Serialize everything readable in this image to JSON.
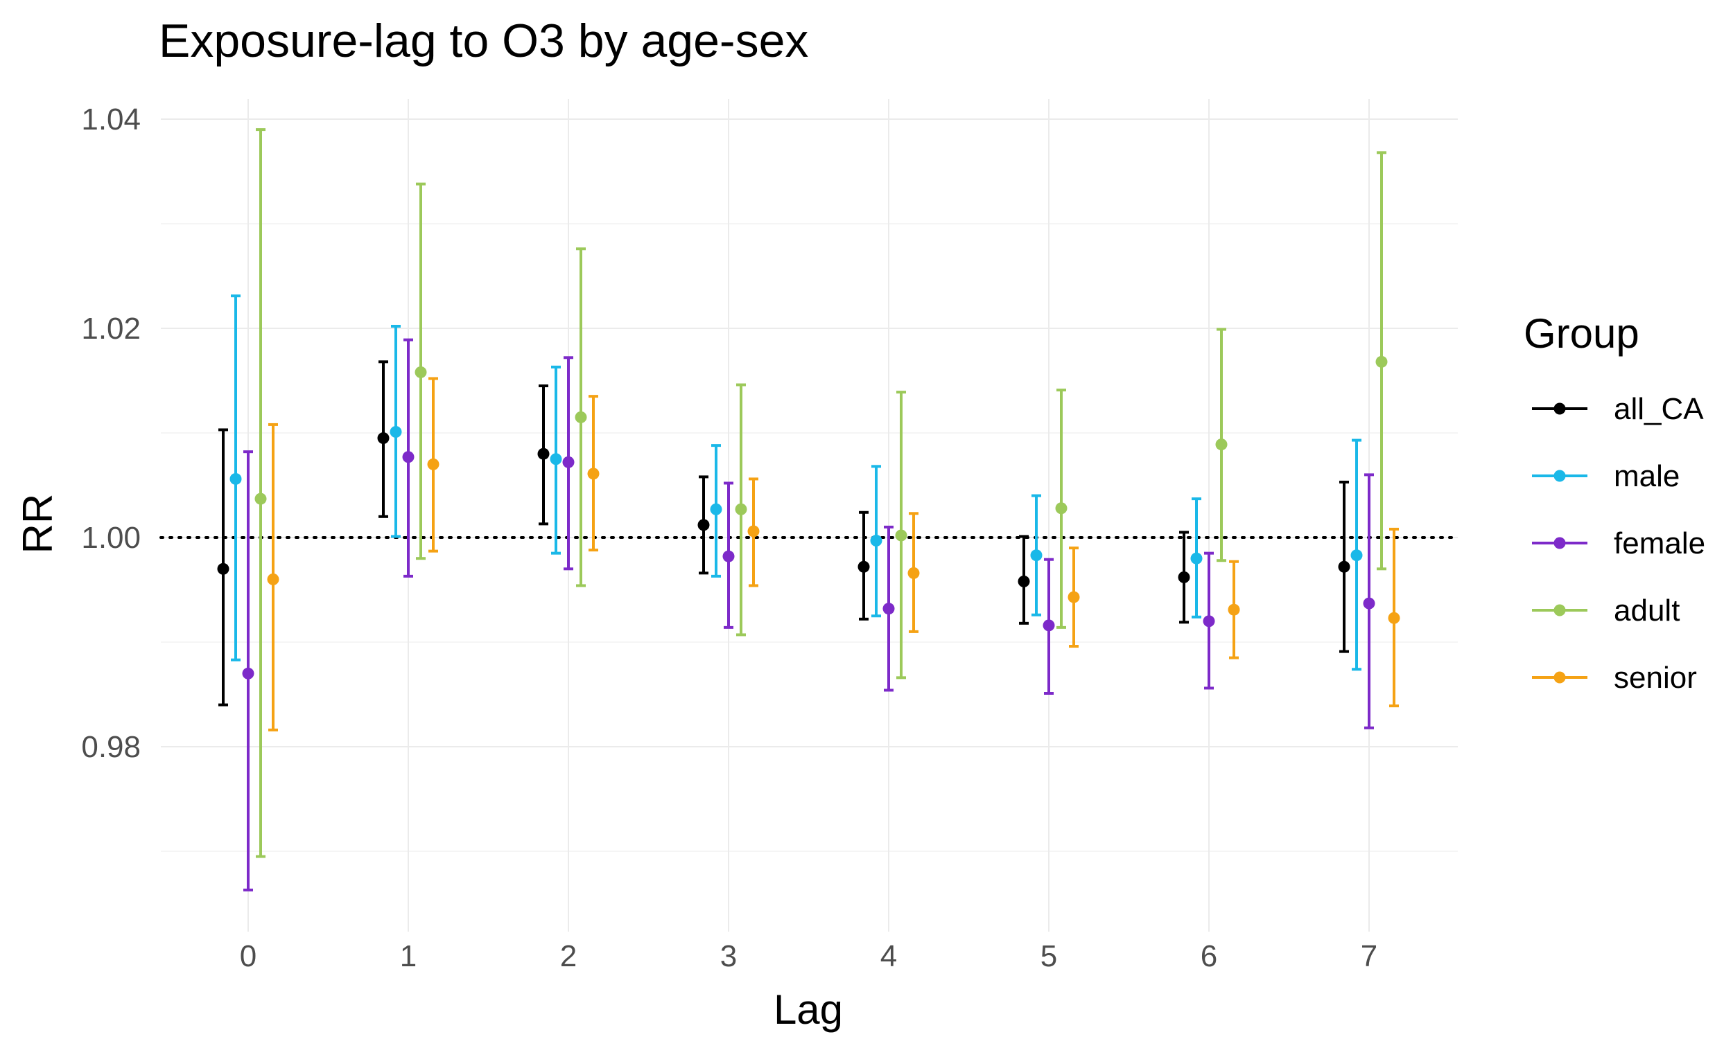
{
  "chart_data": {
    "type": "errorbar",
    "title": "Exposure-lag to O3 by age-sex",
    "xlabel": "Lag",
    "ylabel": "RR",
    "categories": [
      "0",
      "1",
      "2",
      "3",
      "4",
      "5",
      "6",
      "7"
    ],
    "x_ticks": [
      "0",
      "1",
      "2",
      "3",
      "4",
      "5",
      "6",
      "7"
    ],
    "y_ticks": [
      "0.98",
      "1.00",
      "1.02",
      "1.04"
    ],
    "ylim": [
      0.963,
      1.04
    ],
    "reference_line": 1.0,
    "grid": true,
    "legend_title": "Group",
    "legend_position": "right",
    "series": [
      {
        "name": "all_CA",
        "color": "#000000",
        "values": [
          0.997,
          1.0095,
          1.008,
          1.0012,
          0.9972,
          0.9958,
          0.9962,
          0.9972
        ],
        "lower": [
          0.984,
          1.002,
          1.0013,
          0.9966,
          0.9922,
          0.9918,
          0.9919,
          0.9891
        ],
        "upper": [
          1.0103,
          1.0168,
          1.0145,
          1.0058,
          1.0024,
          1.0001,
          1.0005,
          1.0053
        ]
      },
      {
        "name": "male",
        "color": "#1ab8e8",
        "values": [
          1.0056,
          1.0101,
          1.0075,
          1.0027,
          0.9997,
          0.9983,
          0.998,
          0.9983
        ],
        "lower": [
          0.9883,
          1.0001,
          0.9985,
          0.9963,
          0.9925,
          0.9926,
          0.9924,
          0.9874
        ],
        "upper": [
          1.0231,
          1.0202,
          1.0163,
          1.0088,
          1.0068,
          1.004,
          1.0037,
          1.0093
        ]
      },
      {
        "name": "female",
        "color": "#7d2ac9",
        "values": [
          0.987,
          1.0077,
          1.0072,
          0.9982,
          0.9932,
          0.9916,
          0.992,
          0.9937
        ],
        "lower": [
          0.9663,
          0.9963,
          0.997,
          0.9914,
          0.9854,
          0.9851,
          0.9856,
          0.9818
        ],
        "upper": [
          1.0082,
          1.0189,
          1.0172,
          1.0052,
          1.001,
          0.9979,
          0.9985,
          1.006
        ]
      },
      {
        "name": "adult",
        "color": "#9cc95a",
        "values": [
          1.0037,
          1.0158,
          1.0115,
          1.0027,
          1.0002,
          1.0028,
          1.0089,
          1.0168
        ],
        "lower": [
          0.9695,
          0.998,
          0.9954,
          0.9907,
          0.9866,
          0.9914,
          0.9978,
          0.997
        ],
        "upper": [
          1.039,
          1.0338,
          1.0276,
          1.0146,
          1.0139,
          1.0141,
          1.0199,
          1.0368
        ]
      },
      {
        "name": "senior",
        "color": "#f5a214",
        "values": [
          0.996,
          1.007,
          1.0061,
          1.0006,
          0.9966,
          0.9943,
          0.9931,
          0.9923
        ],
        "lower": [
          0.9816,
          0.9987,
          0.9988,
          0.9954,
          0.991,
          0.9896,
          0.9885,
          0.9839
        ],
        "upper": [
          1.0108,
          1.0152,
          1.0135,
          1.0056,
          1.0023,
          0.999,
          0.9977,
          1.0008
        ]
      }
    ]
  }
}
